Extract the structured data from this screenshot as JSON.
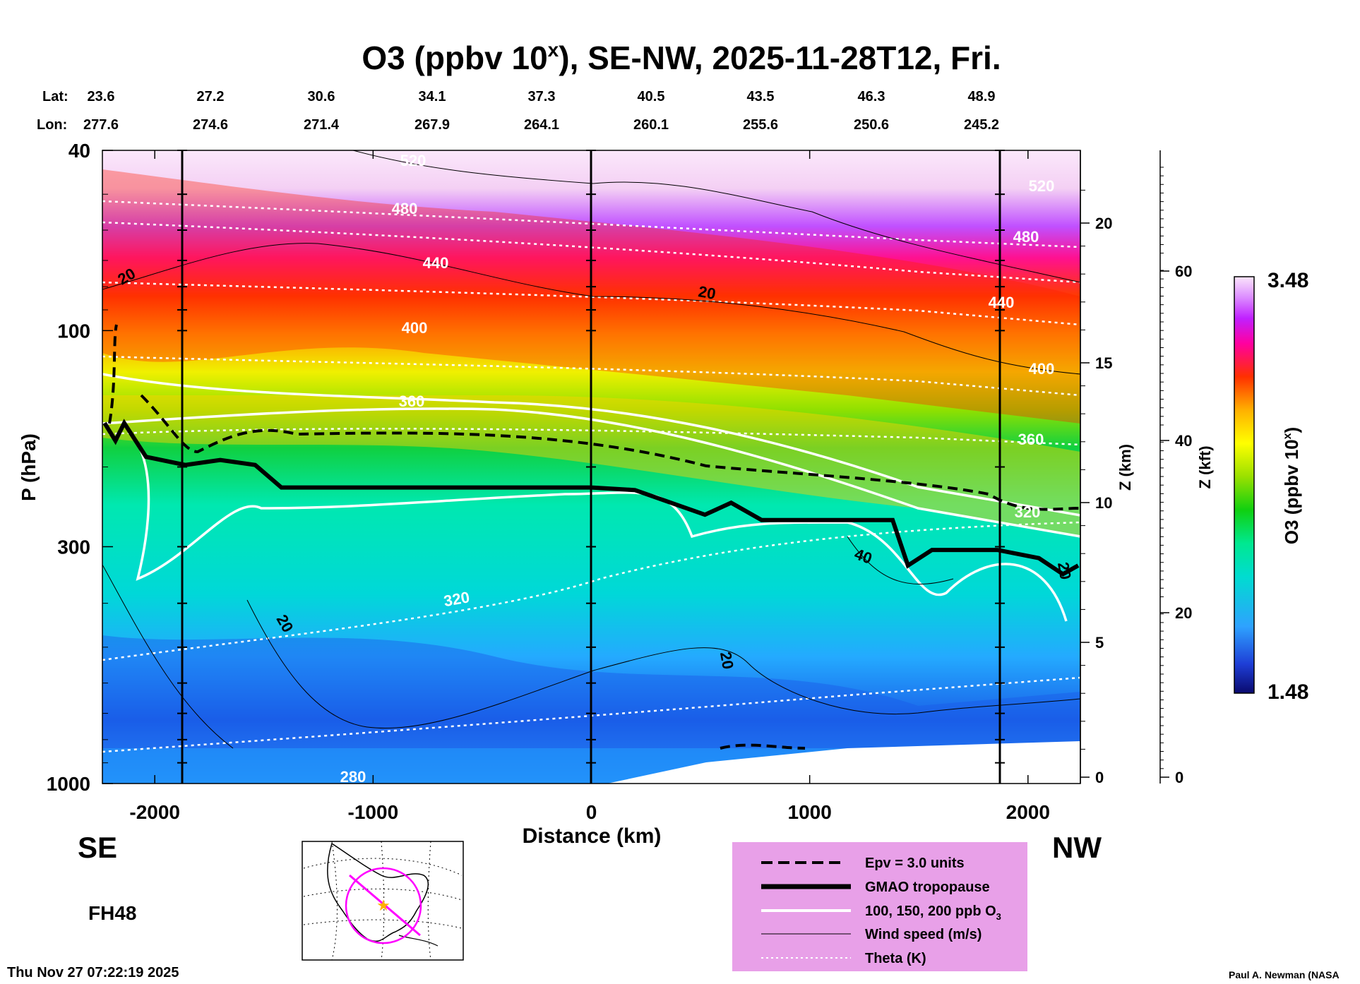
{
  "header": {
    "title_main": "O3 (ppbv 10",
    "title_sup": "x",
    "title_tail": "), SE-NW, 2025-11-28T12, Fri.",
    "lat_label": "Lat:",
    "lon_label": "Lon:",
    "lats": [
      "23.6",
      "27.2",
      "30.6",
      "34.1",
      "37.3",
      "40.5",
      "43.5",
      "46.3",
      "48.9"
    ],
    "lons": [
      "277.6",
      "274.6",
      "271.4",
      "267.9",
      "264.1",
      "260.1",
      "255.6",
      "250.6",
      "245.2"
    ]
  },
  "chart_data": {
    "type": "heatmap",
    "title": "O3 (ppbv 10^x), SE-NW, 2025-11-28T12, Fri.",
    "xlabel": "Distance (km)",
    "ylabel": "P (hPa)",
    "xlim": [
      -2240,
      2240
    ],
    "ylim": [
      1000,
      40
    ],
    "x_ticks": [
      "-2000",
      "-1000",
      "0",
      "1000",
      "2000"
    ],
    "y_ticks": [
      "40",
      "100",
      "300",
      "1000"
    ],
    "z_km_label": "Z (km)",
    "z_km_ticks": [
      "0",
      "5",
      "10",
      "15",
      "20"
    ],
    "z_kft_label": "Z (kft)",
    "z_kft_ticks": [
      "0",
      "20",
      "40",
      "60"
    ],
    "colorbar": {
      "label": "O3 (ppbv 10",
      "label_sup": "x",
      "label_tail": ")",
      "max": "3.48",
      "min": "1.48"
    },
    "theta_contours_K": [
      {
        "value": "280",
        "y_hpa": 935
      },
      {
        "value": "320",
        "y_hpa": 425
      },
      {
        "value": "360",
        "y_hpa": 165
      },
      {
        "value": "400",
        "y_hpa": 110
      },
      {
        "value": "440",
        "y_hpa": 80
      },
      {
        "value": "480",
        "y_hpa": 56
      }
    ],
    "contour_labels": [
      "20",
      "20",
      "20",
      "20",
      "40",
      "20",
      "280",
      "320",
      "360",
      "400",
      "440",
      "480",
      "520",
      "360",
      "400",
      "440",
      "480",
      "520",
      "320"
    ],
    "tropopause_hpa": [
      [
        -2230,
        160
      ],
      [
        -2180,
        175
      ],
      [
        -2140,
        160
      ],
      [
        -2040,
        190
      ],
      [
        -1860,
        198
      ],
      [
        -1700,
        193
      ],
      [
        -1540,
        198
      ],
      [
        -1420,
        222
      ],
      [
        0,
        222
      ],
      [
        200,
        225
      ],
      [
        520,
        255
      ],
      [
        640,
        240
      ],
      [
        780,
        262
      ],
      [
        1000,
        262
      ],
      [
        1380,
        262
      ],
      [
        1450,
        330
      ],
      [
        1560,
        305
      ],
      [
        1860,
        305
      ],
      [
        2050,
        318
      ],
      [
        2160,
        345
      ],
      [
        2230,
        330
      ]
    ],
    "section_lat": [
      "23.6",
      "27.2",
      "30.6",
      "34.1",
      "37.3",
      "40.5",
      "43.5",
      "46.3",
      "48.9"
    ],
    "section_lon": [
      "277.6",
      "274.6",
      "271.4",
      "267.9",
      "264.1",
      "260.1",
      "255.6",
      "250.6",
      "245.2"
    ]
  },
  "labels": {
    "left_end": "SE",
    "right_end": "NW",
    "forecast_hour": "FH48",
    "timestamp": "Thu Nov 27 07:22:19 2025",
    "credit": "Paul A. Newman (NASA"
  },
  "legend": {
    "items": [
      {
        "label": "Epv = 3.0 units"
      },
      {
        "label": "GMAO tropopause"
      },
      {
        "label": "100, 150, 200 ppb O",
        "sub": "3"
      },
      {
        "label": "Wind speed (m/s)"
      },
      {
        "label": "Theta (K)"
      }
    ]
  },
  "colors": {
    "legend_bg": "#e8a0e8",
    "colorbar_stops": [
      "#0a0a6e",
      "#1e3ed6",
      "#2ea2ff",
      "#00dcd0",
      "#00e890",
      "#10d010",
      "#9ae000",
      "#ffff00",
      "#ffb000",
      "#ff3000",
      "#ff00a0",
      "#c020ff",
      "#dc8cff",
      "#fbe6fb"
    ]
  }
}
